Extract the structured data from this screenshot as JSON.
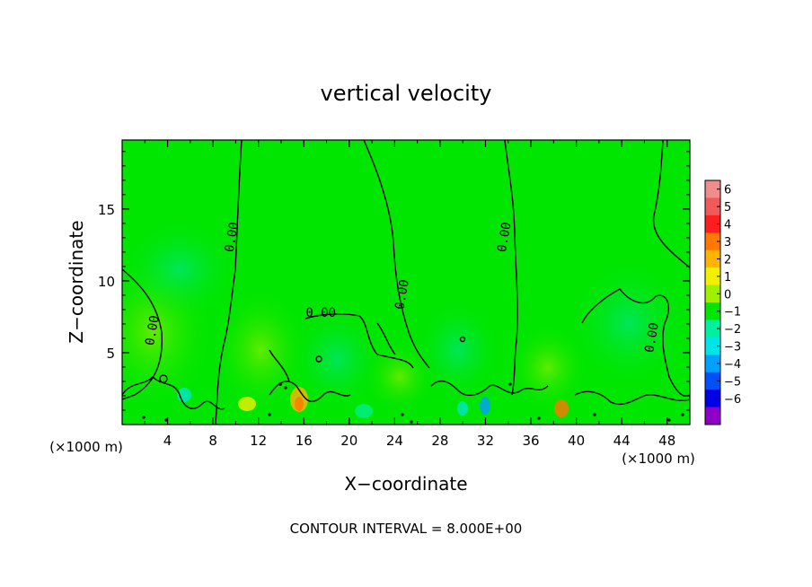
{
  "chart_data": {
    "type": "heatmap",
    "title": "vertical velocity",
    "xlabel": "X−coordinate",
    "ylabel": "Z−coordinate",
    "x_unit": "(×1000 m)",
    "x_unit_right": "(×1000 m)",
    "footer": "CONTOUR INTERVAL = 8.000E+00",
    "xlim": [
      0,
      50
    ],
    "ylim": [
      0,
      19.8
    ],
    "x_ticks": [
      4,
      8,
      12,
      16,
      20,
      24,
      28,
      32,
      36,
      40,
      44,
      48
    ],
    "y_ticks": [
      5,
      10,
      15
    ],
    "colorbar": {
      "levels": [
        6,
        5,
        4,
        3,
        2,
        1,
        0,
        -1,
        -2,
        -3,
        -4,
        -5,
        -6
      ],
      "labels": [
        "6",
        "5",
        "4",
        "3",
        "2",
        "1",
        "0",
        "−1",
        "−2",
        "−3",
        "−4",
        "−5",
        "−6"
      ],
      "colors": [
        "#f08c8c",
        "#f05a5a",
        "#ff1e1e",
        "#ff7800",
        "#ffb400",
        "#f0f000",
        "#a0f000",
        "#00e600",
        "#00f0a0",
        "#00e6e6",
        "#00a0ff",
        "#0050ff",
        "#0000e6",
        "#8c00c8"
      ]
    },
    "background_value_color": "#00e600",
    "contour_label": "0.00",
    "contour_label_positions": [
      [
        10,
        13
      ],
      [
        17.5,
        7.5
      ],
      [
        25,
        9
      ],
      [
        34,
        13
      ],
      [
        3,
        6.5
      ],
      [
        47,
        6
      ]
    ]
  }
}
